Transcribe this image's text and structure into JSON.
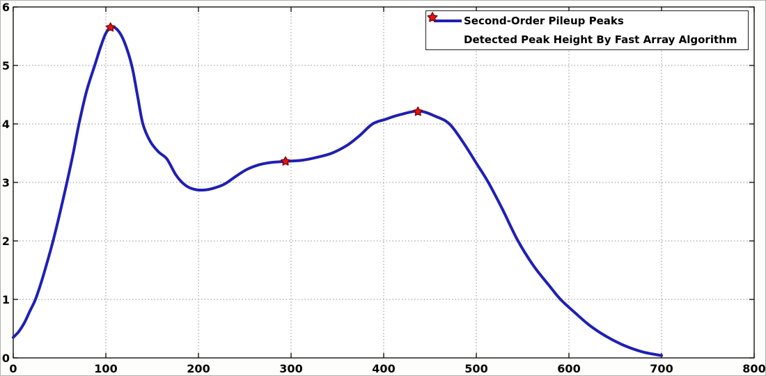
{
  "figure": {
    "background": "#fdfdfb",
    "plot_background": "#ffffff",
    "axis_color": "#000000",
    "grid_color": "#8c8c8c"
  },
  "chart_data": {
    "type": "line",
    "title": "",
    "xlabel": "",
    "ylabel": "",
    "xlim": [
      0,
      800
    ],
    "ylim": [
      0,
      6
    ],
    "xticks": [
      0,
      100,
      200,
      300,
      400,
      500,
      600,
      700,
      800
    ],
    "yticks": [
      0,
      1,
      2,
      3,
      4,
      5,
      6
    ],
    "grid": "dotted",
    "legend_position": "top-right",
    "series": [
      {
        "name": "Second-Order Pileup Peaks",
        "type": "line",
        "color": "#1f1fb4",
        "line_width": 4,
        "points": [
          [
            0,
            0.35
          ],
          [
            6,
            0.45
          ],
          [
            12,
            0.6
          ],
          [
            18,
            0.8
          ],
          [
            24,
            1.0
          ],
          [
            30,
            1.28
          ],
          [
            36,
            1.6
          ],
          [
            43,
            2.0
          ],
          [
            50,
            2.45
          ],
          [
            58,
            3.0
          ],
          [
            65,
            3.52
          ],
          [
            71,
            4.0
          ],
          [
            79,
            4.55
          ],
          [
            88,
            5.0
          ],
          [
            94,
            5.3
          ],
          [
            100,
            5.55
          ],
          [
            106,
            5.66
          ],
          [
            113,
            5.6
          ],
          [
            120,
            5.4
          ],
          [
            128,
            5.0
          ],
          [
            134,
            4.5
          ],
          [
            140,
            4.0
          ],
          [
            148,
            3.7
          ],
          [
            157,
            3.52
          ],
          [
            166,
            3.4
          ],
          [
            176,
            3.12
          ],
          [
            186,
            2.95
          ],
          [
            196,
            2.88
          ],
          [
            206,
            2.87
          ],
          [
            216,
            2.9
          ],
          [
            228,
            2.97
          ],
          [
            240,
            3.1
          ],
          [
            252,
            3.22
          ],
          [
            265,
            3.3
          ],
          [
            278,
            3.34
          ],
          [
            294,
            3.36
          ],
          [
            312,
            3.38
          ],
          [
            328,
            3.43
          ],
          [
            344,
            3.5
          ],
          [
            360,
            3.63
          ],
          [
            374,
            3.8
          ],
          [
            388,
            4.0
          ],
          [
            402,
            4.08
          ],
          [
            418,
            4.16
          ],
          [
            438,
            4.22
          ],
          [
            456,
            4.13
          ],
          [
            471,
            4.0
          ],
          [
            486,
            3.68
          ],
          [
            500,
            3.33
          ],
          [
            513,
            3.0
          ],
          [
            528,
            2.55
          ],
          [
            545,
            2.0
          ],
          [
            562,
            1.57
          ],
          [
            578,
            1.25
          ],
          [
            591,
            1.0
          ],
          [
            606,
            0.78
          ],
          [
            622,
            0.56
          ],
          [
            640,
            0.37
          ],
          [
            660,
            0.21
          ],
          [
            680,
            0.1
          ],
          [
            700,
            0.04
          ]
        ]
      },
      {
        "name": "Detected Peak Height By Fast Array Algorithm",
        "type": "scatter",
        "marker": "pentagram",
        "color": "#e41414",
        "edge_color": "#7f0000",
        "points": [
          [
            105,
            5.65
          ],
          [
            294,
            3.36
          ],
          [
            437,
            4.21
          ]
        ]
      }
    ]
  }
}
